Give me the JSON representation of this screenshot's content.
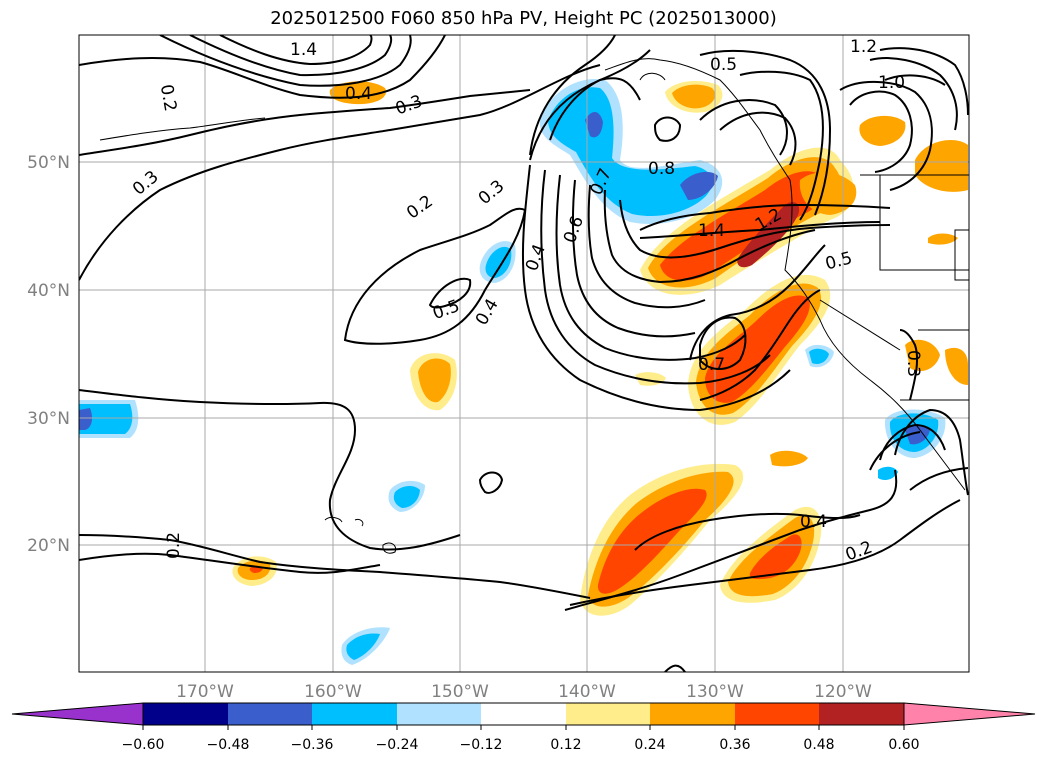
{
  "title": "2025012500 F060 850 hPa PV, Height PC (2025013000)",
  "lat_labels": [
    "50°N",
    "40°N",
    "30°N",
    "20°N"
  ],
  "lon_labels": [
    "170°W",
    "160°W",
    "150°W",
    "140°W",
    "130°W",
    "120°W"
  ],
  "colorbar": {
    "colors": [
      "#9932cc",
      "#00008b",
      "#3a5fcd",
      "#00bfff",
      "#b0e2ff",
      "#ffffff",
      "#ffec8b",
      "#ffa500",
      "#ff4500",
      "#b22222",
      "#ff82ab"
    ],
    "ticks": [
      "−0.60",
      "−0.48",
      "−0.36",
      "−0.24",
      "−0.12",
      "0.12",
      "0.24",
      "0.36",
      "0.48",
      "0.60"
    ]
  },
  "contour_labels": [
    "1.4",
    "0.4",
    "0.5",
    "1.2",
    "1.0",
    "0.2",
    "0.3",
    "0.3",
    "0.2",
    "0.3",
    "0.7",
    "0.8",
    "0.6",
    "0.4",
    "1.4",
    "1.2",
    "0.5",
    "0.5",
    "0.4",
    "0.7",
    "0.3",
    "0.4",
    "0.2",
    "0.2"
  ]
}
